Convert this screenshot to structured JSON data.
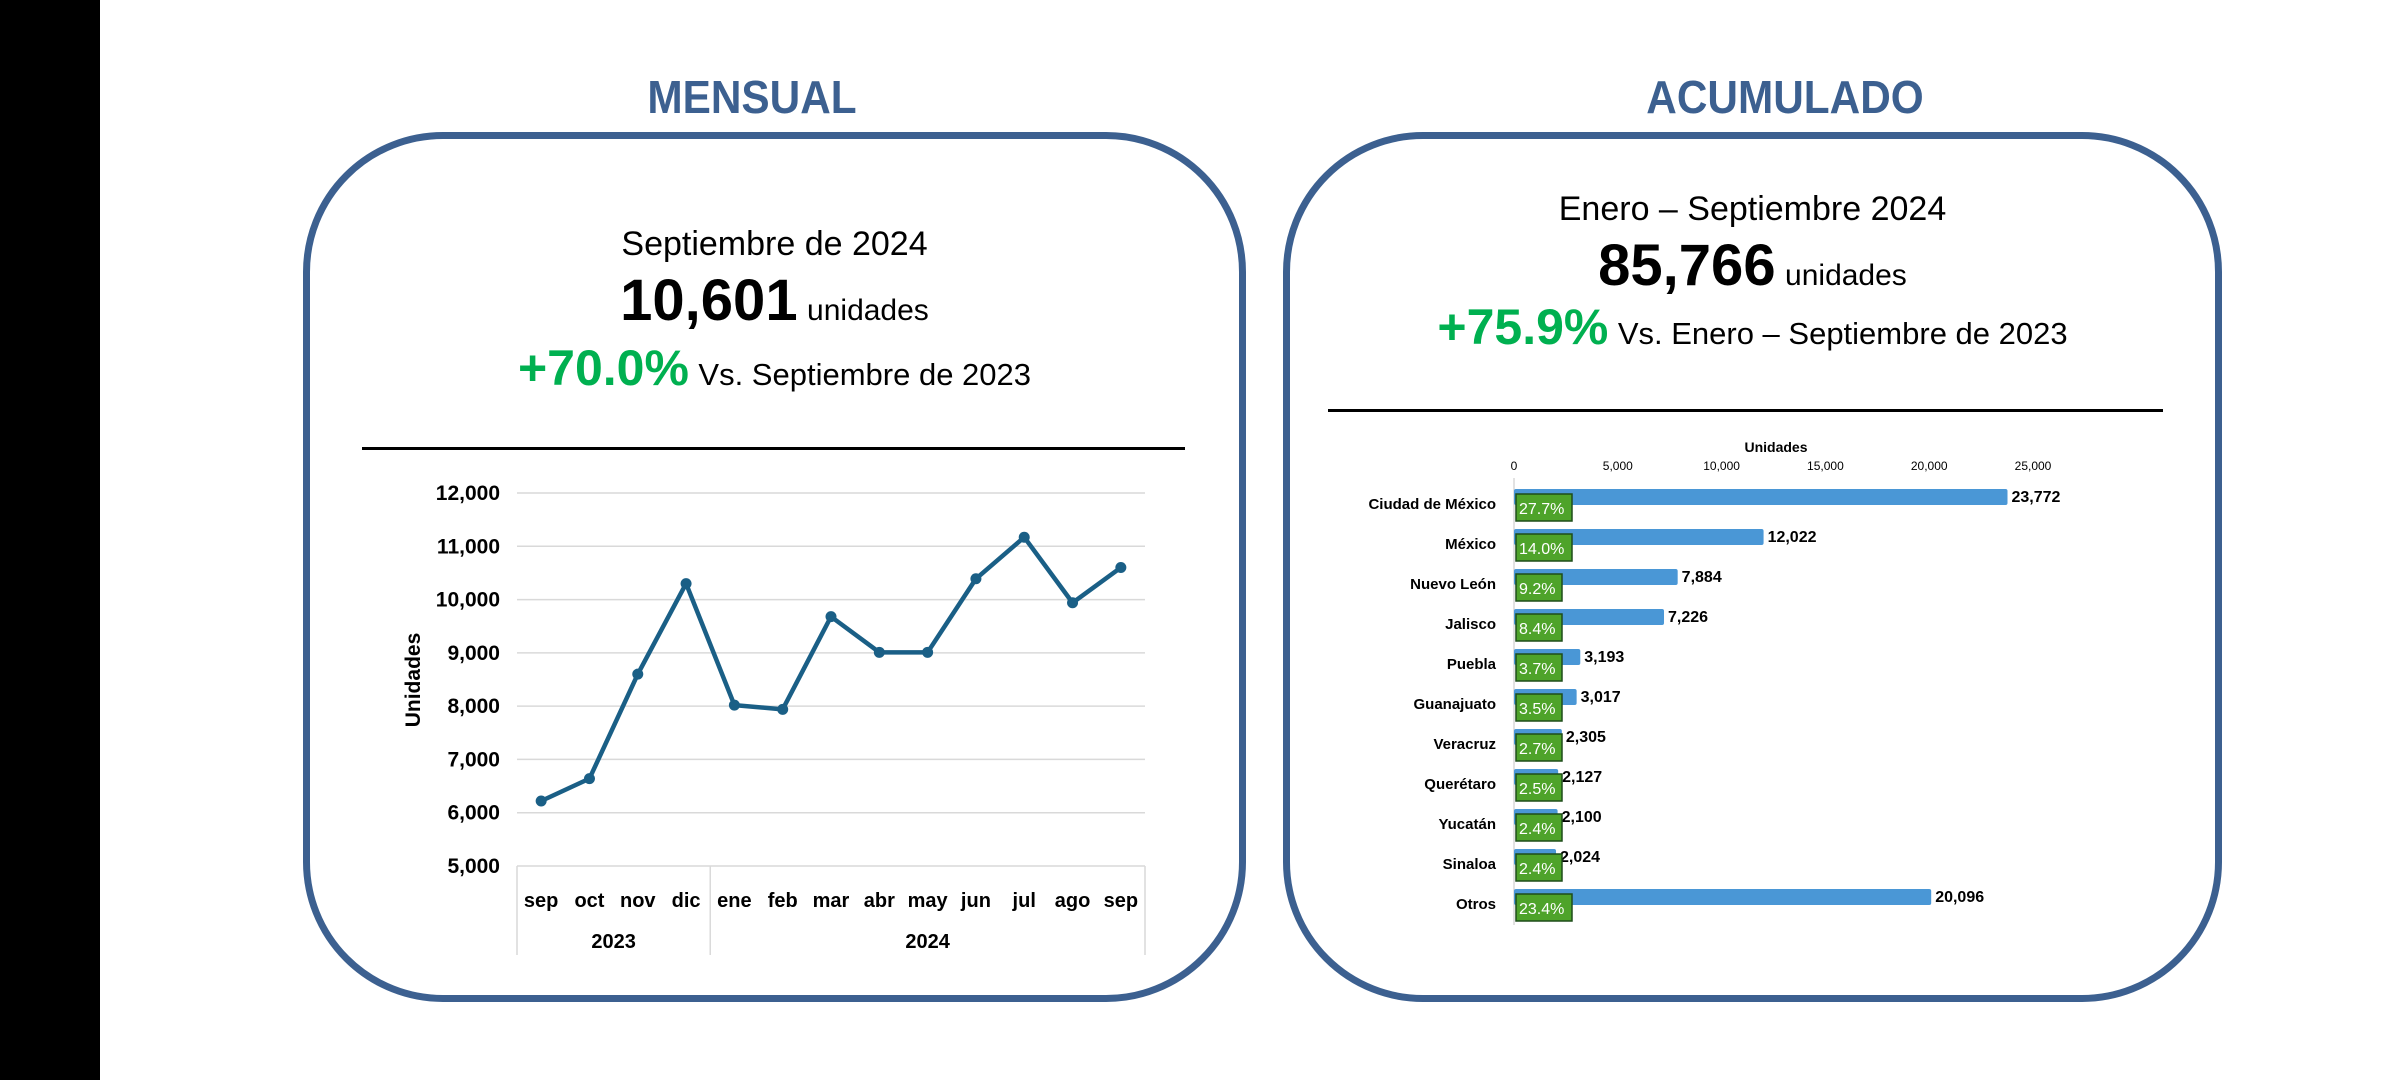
{
  "colors": {
    "frame": "#3c6090",
    "positive": "#00b050",
    "line": "#1a5f86",
    "bar": "#4a97d6",
    "share_fill": "#4ea32a",
    "share_border": "#1e4d1a"
  },
  "mensual": {
    "title": "MENSUAL",
    "period": "Septiembre de 2024",
    "value": "10,601",
    "unit": "unidades",
    "change": "+70.0%",
    "comparison": "Vs. Septiembre de 2023"
  },
  "acumulado": {
    "title": "ACUMULADO",
    "period": "Enero – Septiembre 2024",
    "value": "85,766",
    "unit": "unidades",
    "change": "+75.9%",
    "comparison": "Vs. Enero – Septiembre de 2023"
  },
  "chart_data": [
    {
      "type": "line",
      "title": "",
      "ylabel": "Unidades",
      "xlabel": "",
      "ylim": [
        5000,
        12000
      ],
      "yticks": [
        5000,
        6000,
        7000,
        8000,
        9000,
        10000,
        11000,
        12000
      ],
      "ytick_labels": [
        "5,000",
        "6,000",
        "7,000",
        "8,000",
        "9,000",
        "10,000",
        "11,000",
        "12,000"
      ],
      "grid": true,
      "categories": [
        "sep",
        "oct",
        "nov",
        "dic",
        "ene",
        "feb",
        "mar",
        "abr",
        "may",
        "jun",
        "jul",
        "ago",
        "sep"
      ],
      "groups": [
        {
          "label": "2023",
          "count": 4
        },
        {
          "label": "2024",
          "count": 9
        }
      ],
      "series": [
        {
          "name": "Unidades",
          "values": [
            6220,
            6640,
            8600,
            10300,
            8020,
            7940,
            9680,
            9010,
            9010,
            10390,
            11170,
            9940,
            10601
          ]
        }
      ]
    },
    {
      "type": "bar",
      "orientation": "horizontal",
      "title": "",
      "xlabel": "Unidades",
      "xlim": [
        0,
        25000
      ],
      "xticks": [
        0,
        5000,
        10000,
        15000,
        20000,
        25000
      ],
      "xtick_labels": [
        "0",
        "5,000",
        "10,000",
        "15,000",
        "20,000",
        "25,000"
      ],
      "xaxis_position": "top",
      "categories": [
        "Ciudad de México",
        "México",
        "Nuevo León",
        "Jalisco",
        "Puebla",
        "Guanajuato",
        "Veracruz",
        "Querétaro",
        "Yucatán",
        "Sinaloa",
        "Otros"
      ],
      "values": [
        23772,
        12022,
        7884,
        7226,
        3193,
        3017,
        2305,
        2127,
        2100,
        2024,
        20096
      ],
      "value_labels": [
        "23,772",
        "12,022",
        "7,884",
        "7,226",
        "3,193",
        "3,017",
        "2,305",
        "2,127",
        "2,100",
        "2,024",
        "20,096"
      ],
      "share_labels": [
        "27.7%",
        "14.0%",
        "9.2%",
        "8.4%",
        "3.7%",
        "3.5%",
        "2.7%",
        "2.5%",
        "2.4%",
        "2.4%",
        "23.4%"
      ]
    }
  ]
}
